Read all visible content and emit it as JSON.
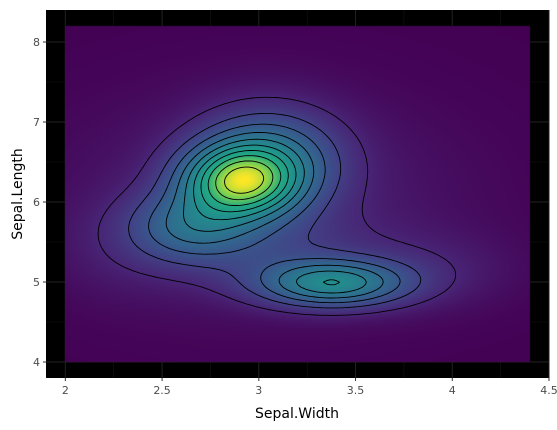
{
  "chart_data": {
    "type": "heatmap",
    "subtype": "2d-density-with-contours",
    "title": "",
    "xlabel": "Sepal.Width",
    "ylabel": "Sepal.Length",
    "xlim": [
      1.9,
      4.5
    ],
    "ylim": [
      3.8,
      8.4
    ],
    "data_extent": {
      "x": [
        2.0,
        4.4
      ],
      "y": [
        4.0,
        8.2
      ]
    },
    "x_ticks": [
      2,
      2.5,
      3,
      3.5,
      4,
      4.5
    ],
    "x_tick_labels": [
      "2",
      "2.5",
      "3",
      "3.5",
      "4",
      "4.5"
    ],
    "y_ticks": [
      4,
      5,
      6,
      7,
      8
    ],
    "y_tick_labels": [
      "4",
      "5",
      "6",
      "7",
      "8"
    ],
    "colormap": "viridis",
    "background": "#000000",
    "grid": true,
    "legend": "none",
    "density_peaks": [
      {
        "x": 2.92,
        "y": 6.2,
        "level": 1.0
      },
      {
        "x": 3.38,
        "y": 4.98,
        "level": 0.68
      }
    ],
    "contour_count": 10
  }
}
